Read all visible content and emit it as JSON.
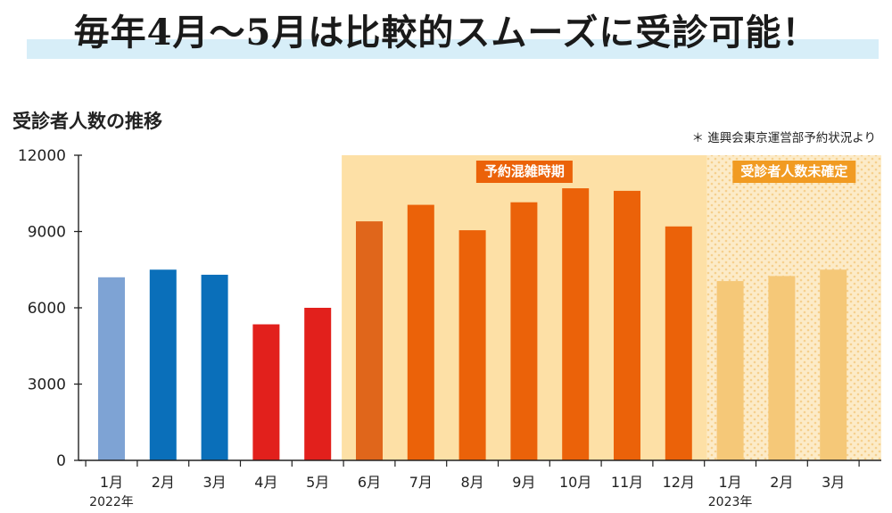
{
  "headline": "毎年4月〜5月は比較的スムーズに受診可能！",
  "chart_data": {
    "type": "bar",
    "title": "受診者人数の推移",
    "source_note": "＊ 進興会東京運営部予約状況より",
    "categories": [
      "1月",
      "2月",
      "3月",
      "4月",
      "5月",
      "6月",
      "7月",
      "8月",
      "9月",
      "10月",
      "11月",
      "12月",
      "1月",
      "2月",
      "3月"
    ],
    "values": [
      7200,
      7500,
      7300,
      5350,
      6000,
      9400,
      10050,
      9050,
      10150,
      10700,
      10600,
      9200,
      7050,
      7250,
      7500
    ],
    "bar_colors": [
      "#7ea3d4",
      "#0a6fba",
      "#0a6fba",
      "#e2201c",
      "#e2201c",
      "#e0661b",
      "#eb6209",
      "#eb6209",
      "#eb6209",
      "#eb6209",
      "#eb6209",
      "#eb6209",
      "#f5c878",
      "#f5c878",
      "#f5c878"
    ],
    "year_labels": [
      {
        "index": 0,
        "label": "2022年"
      },
      {
        "index": 12,
        "label": "2023年"
      }
    ],
    "ylim": [
      0,
      12000
    ],
    "yticks": [
      0,
      3000,
      6000,
      9000,
      12000
    ],
    "regions": [
      {
        "label": "予約混雑時期",
        "from_index": 5,
        "to_index": 11,
        "fill": "#fde0a6",
        "badge_color": "#eb6209"
      },
      {
        "label": "受診者人数未確定",
        "from_index": 12,
        "to_index": 14,
        "fill": "#fcebc8",
        "badge_color": "#f19b22"
      }
    ],
    "grid": false,
    "legend": "none"
  }
}
